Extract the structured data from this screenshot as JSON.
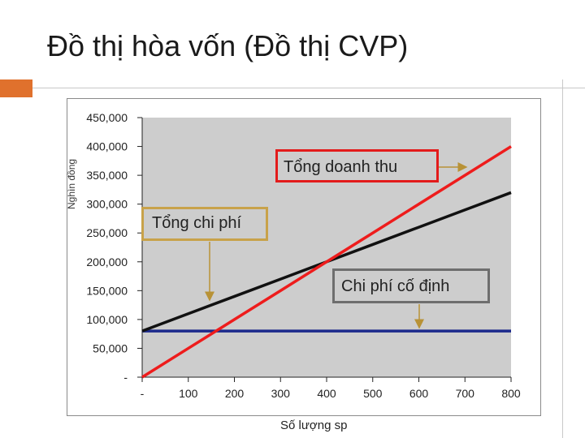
{
  "slide": {
    "title": "Đồ thị hòa vốn (Đồ thị CVP)"
  },
  "colors": {
    "accent": "#e0712d",
    "revenue_line": "#ee1c1c",
    "cost_line": "#111111",
    "fixed_line": "#1c2a8c",
    "plot_bg": "#cdcdcd",
    "revenue_box": "#e31b1b",
    "cost_box": "#c8a24a",
    "fixed_box": "#6e6e6e",
    "arrow": "#b89236"
  },
  "chart_data": {
    "type": "line",
    "title": "",
    "xlabel": "Số lượng sp",
    "ylabel": "Nghìn đồng",
    "x": [
      0,
      100,
      200,
      300,
      400,
      500,
      600,
      700,
      800
    ],
    "xlim": [
      0,
      800
    ],
    "ylim": [
      0,
      450000
    ],
    "x_tick_labels": [
      "-",
      "100",
      "200",
      "300",
      "400",
      "500",
      "600",
      "700",
      "800"
    ],
    "y_tick_labels": [
      "-",
      "50,000",
      "100,000",
      "150,000",
      "200,000",
      "250,000",
      "300,000",
      "350,000",
      "400,000",
      "450,000"
    ],
    "y_ticks": [
      0,
      50000,
      100000,
      150000,
      200000,
      250000,
      300000,
      350000,
      400000,
      450000
    ],
    "series": [
      {
        "name": "Tổng doanh thu",
        "values": [
          0,
          50000,
          100000,
          150000,
          200000,
          250000,
          300000,
          350000,
          400000
        ]
      },
      {
        "name": "Tổng chi phí",
        "values": [
          80000,
          110000,
          140000,
          170000,
          200000,
          230000,
          260000,
          290000,
          320000
        ]
      },
      {
        "name": "Chi phí cố định",
        "values": [
          80000,
          80000,
          80000,
          80000,
          80000,
          80000,
          80000,
          80000,
          80000
        ]
      }
    ],
    "annotations": [
      {
        "label": "Tổng doanh thu"
      },
      {
        "label": "Tổng chi phí"
      },
      {
        "label": "Chi phí cố định"
      }
    ]
  }
}
